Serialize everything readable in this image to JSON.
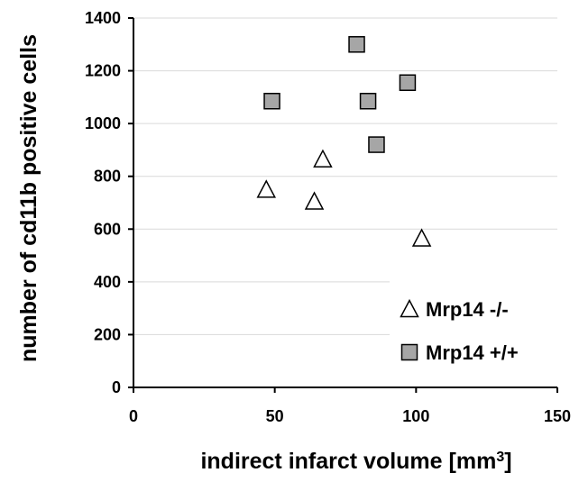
{
  "chart_data": {
    "type": "scatter",
    "xlabel": "indirect infarct volume [mm",
    "xlabel_sup": "3",
    "xlabel_suffix": "]",
    "ylabel": "number of cd11b positive cells",
    "xlim": [
      0,
      150
    ],
    "ylim": [
      0,
      1400
    ],
    "xticks": [
      "0",
      "50",
      "100",
      "150"
    ],
    "yticks": [
      "0",
      "200",
      "400",
      "600",
      "800",
      "1000",
      "1200",
      "1400"
    ],
    "grid": "horizontal",
    "legend_position": "bottom-right",
    "series": [
      {
        "name": "Mrp14 -/-",
        "marker": "triangle",
        "color": "#ffffff",
        "points": [
          {
            "x": 47,
            "y": 750
          },
          {
            "x": 64,
            "y": 705
          },
          {
            "x": 67,
            "y": 865
          },
          {
            "x": 102,
            "y": 565
          }
        ]
      },
      {
        "name": "Mrp14 +/+",
        "marker": "square",
        "color": "#a6a6a6",
        "points": [
          {
            "x": 49,
            "y": 1085
          },
          {
            "x": 79,
            "y": 1300
          },
          {
            "x": 83,
            "y": 1085
          },
          {
            "x": 86,
            "y": 920
          },
          {
            "x": 97,
            "y": 1155
          }
        ]
      }
    ]
  }
}
